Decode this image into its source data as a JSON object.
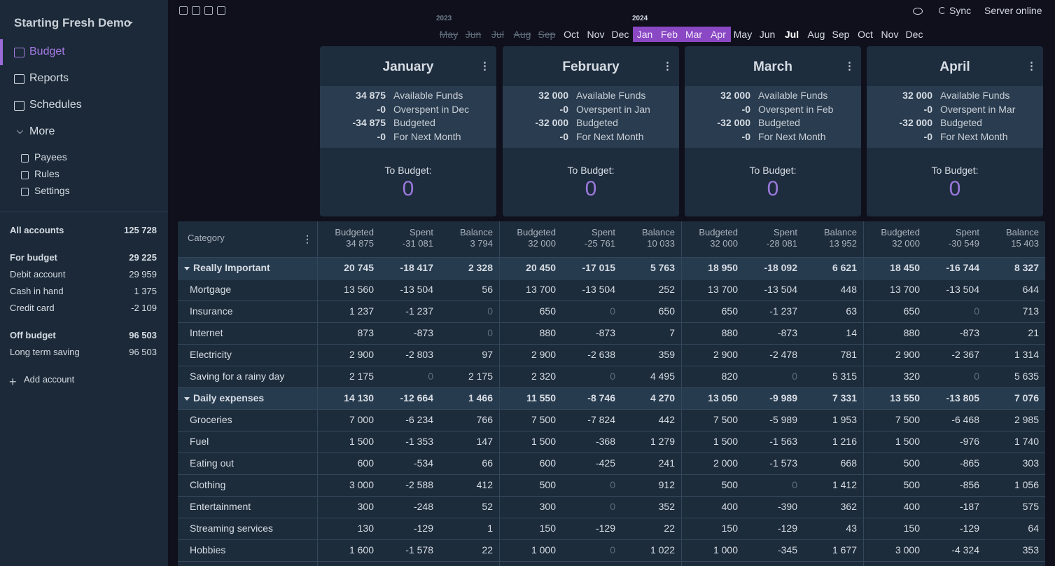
{
  "sidebar": {
    "budget_name": "Starting Fresh Demo",
    "nav": [
      "Budget",
      "Reports",
      "Schedules",
      "More"
    ],
    "more": [
      "Payees",
      "Rules",
      "Settings"
    ],
    "all_accounts": {
      "name": "All accounts",
      "balance": "125 728"
    },
    "groups": [
      {
        "name": "For budget",
        "balance": "29 225",
        "accounts": [
          {
            "name": "Debit account",
            "balance": "29 959"
          },
          {
            "name": "Cash in hand",
            "balance": "1 375"
          },
          {
            "name": "Credit card",
            "balance": "-2 109"
          }
        ]
      },
      {
        "name": "Off budget",
        "balance": "96 503",
        "accounts": [
          {
            "name": "Long term saving",
            "balance": "96 503"
          }
        ]
      }
    ],
    "add_account": "Add account"
  },
  "header": {
    "sync": "Sync",
    "status": "Server online"
  },
  "month_picker": [
    {
      "label": "May",
      "year": "2023",
      "style": "disabled"
    },
    {
      "label": "Jun",
      "style": "disabled"
    },
    {
      "label": "Jul",
      "style": "disabled"
    },
    {
      "label": "Aug",
      "style": "disabled"
    },
    {
      "label": "Sep",
      "style": "disabled"
    },
    {
      "label": "Oct",
      "style": "normal"
    },
    {
      "label": "Nov",
      "style": "normal"
    },
    {
      "label": "Dec",
      "style": "normal"
    },
    {
      "label": "Jan",
      "year": "2024",
      "style": "selected"
    },
    {
      "label": "Feb",
      "style": "selected"
    },
    {
      "label": "Mar",
      "style": "selected"
    },
    {
      "label": "Apr",
      "style": "selected"
    },
    {
      "label": "May",
      "style": "normal"
    },
    {
      "label": "Jun",
      "style": "normal"
    },
    {
      "label": "Jul",
      "style": "current"
    },
    {
      "label": "Aug",
      "style": "normal"
    },
    {
      "label": "Sep",
      "style": "normal"
    },
    {
      "label": "Oct",
      "style": "normal"
    },
    {
      "label": "Nov",
      "style": "normal"
    },
    {
      "label": "Dec",
      "style": "normal"
    }
  ],
  "months": [
    {
      "name": "January",
      "summary": [
        [
          "34 875",
          "Available Funds"
        ],
        [
          "-0",
          "Overspent in Dec"
        ],
        [
          "-34 875",
          "Budgeted"
        ],
        [
          "-0",
          "For Next Month"
        ]
      ],
      "to_budget_label": "To Budget:",
      "to_budget": "0"
    },
    {
      "name": "February",
      "summary": [
        [
          "32 000",
          "Available Funds"
        ],
        [
          "-0",
          "Overspent in Jan"
        ],
        [
          "-32 000",
          "Budgeted"
        ],
        [
          "-0",
          "For Next Month"
        ]
      ],
      "to_budget_label": "To Budget:",
      "to_budget": "0"
    },
    {
      "name": "March",
      "summary": [
        [
          "32 000",
          "Available Funds"
        ],
        [
          "-0",
          "Overspent in Feb"
        ],
        [
          "-32 000",
          "Budgeted"
        ],
        [
          "-0",
          "For Next Month"
        ]
      ],
      "to_budget_label": "To Budget:",
      "to_budget": "0"
    },
    {
      "name": "April",
      "summary": [
        [
          "32 000",
          "Available Funds"
        ],
        [
          "-0",
          "Overspent in Mar"
        ],
        [
          "-32 000",
          "Budgeted"
        ],
        [
          "-0",
          "For Next Month"
        ]
      ],
      "to_budget_label": "To Budget:",
      "to_budget": "0"
    }
  ],
  "table": {
    "category_label": "Category",
    "columns": [
      "Budgeted",
      "Spent",
      "Balance"
    ],
    "totals": [
      [
        "34 875",
        "-31 081",
        "3 794"
      ],
      [
        "32 000",
        "-25 761",
        "10 033"
      ],
      [
        "32 000",
        "-28 081",
        "13 952"
      ],
      [
        "32 000",
        "-30 549",
        "15 403"
      ]
    ],
    "rows": [
      {
        "name": "Really Important",
        "group": true,
        "values": [
          [
            "20 745",
            "-18 417",
            "2 328"
          ],
          [
            "20 450",
            "-17 015",
            "5 763"
          ],
          [
            "18 950",
            "-18 092",
            "6 621"
          ],
          [
            "18 450",
            "-16 744",
            "8 327"
          ]
        ]
      },
      {
        "name": "Mortgage",
        "values": [
          [
            "13 560",
            "-13 504",
            "56"
          ],
          [
            "13 700",
            "-13 504",
            "252"
          ],
          [
            "13 700",
            "-13 504",
            "448"
          ],
          [
            "13 700",
            "-13 504",
            "644"
          ]
        ]
      },
      {
        "name": "Insurance",
        "values": [
          [
            "1 237",
            "-1 237",
            "0"
          ],
          [
            "650",
            "0",
            "650"
          ],
          [
            "650",
            "-1 237",
            "63"
          ],
          [
            "650",
            "0",
            "713"
          ]
        ]
      },
      {
        "name": "Internet",
        "values": [
          [
            "873",
            "-873",
            "0"
          ],
          [
            "880",
            "-873",
            "7"
          ],
          [
            "880",
            "-873",
            "14"
          ],
          [
            "880",
            "-873",
            "21"
          ]
        ]
      },
      {
        "name": "Electricity",
        "values": [
          [
            "2 900",
            "-2 803",
            "97"
          ],
          [
            "2 900",
            "-2 638",
            "359"
          ],
          [
            "2 900",
            "-2 478",
            "781"
          ],
          [
            "2 900",
            "-2 367",
            "1 314"
          ]
        ]
      },
      {
        "name": "Saving for a rainy day",
        "values": [
          [
            "2 175",
            "0",
            "2 175"
          ],
          [
            "2 320",
            "0",
            "4 495"
          ],
          [
            "820",
            "0",
            "5 315"
          ],
          [
            "320",
            "0",
            "5 635"
          ]
        ]
      },
      {
        "name": "Daily expenses",
        "group": true,
        "values": [
          [
            "14 130",
            "-12 664",
            "1 466"
          ],
          [
            "11 550",
            "-8 746",
            "4 270"
          ],
          [
            "13 050",
            "-9 989",
            "7 331"
          ],
          [
            "13 550",
            "-13 805",
            "7 076"
          ]
        ]
      },
      {
        "name": "Groceries",
        "values": [
          [
            "7 000",
            "-6 234",
            "766"
          ],
          [
            "7 500",
            "-7 824",
            "442"
          ],
          [
            "7 500",
            "-5 989",
            "1 953"
          ],
          [
            "7 500",
            "-6 468",
            "2 985"
          ]
        ]
      },
      {
        "name": "Fuel",
        "values": [
          [
            "1 500",
            "-1 353",
            "147"
          ],
          [
            "1 500",
            "-368",
            "1 279"
          ],
          [
            "1 500",
            "-1 563",
            "1 216"
          ],
          [
            "1 500",
            "-976",
            "1 740"
          ]
        ]
      },
      {
        "name": "Eating out",
        "values": [
          [
            "600",
            "-534",
            "66"
          ],
          [
            "600",
            "-425",
            "241"
          ],
          [
            "2 000",
            "-1 573",
            "668"
          ],
          [
            "500",
            "-865",
            "303"
          ]
        ]
      },
      {
        "name": "Clothing",
        "values": [
          [
            "3 000",
            "-2 588",
            "412"
          ],
          [
            "500",
            "0",
            "912"
          ],
          [
            "500",
            "0",
            "1 412"
          ],
          [
            "500",
            "-856",
            "1 056"
          ]
        ]
      },
      {
        "name": "Entertainment",
        "values": [
          [
            "300",
            "-248",
            "52"
          ],
          [
            "300",
            "0",
            "352"
          ],
          [
            "400",
            "-390",
            "362"
          ],
          [
            "400",
            "-187",
            "575"
          ]
        ]
      },
      {
        "name": "Streaming services",
        "values": [
          [
            "130",
            "-129",
            "1"
          ],
          [
            "150",
            "-129",
            "22"
          ],
          [
            "150",
            "-129",
            "43"
          ],
          [
            "150",
            "-129",
            "64"
          ]
        ]
      },
      {
        "name": "Hobbies",
        "values": [
          [
            "1 600",
            "-1 578",
            "22"
          ],
          [
            "1 000",
            "0",
            "1 022"
          ],
          [
            "1 000",
            "-345",
            "1 677"
          ],
          [
            "3 000",
            "-4 324",
            "353"
          ]
        ]
      }
    ]
  }
}
